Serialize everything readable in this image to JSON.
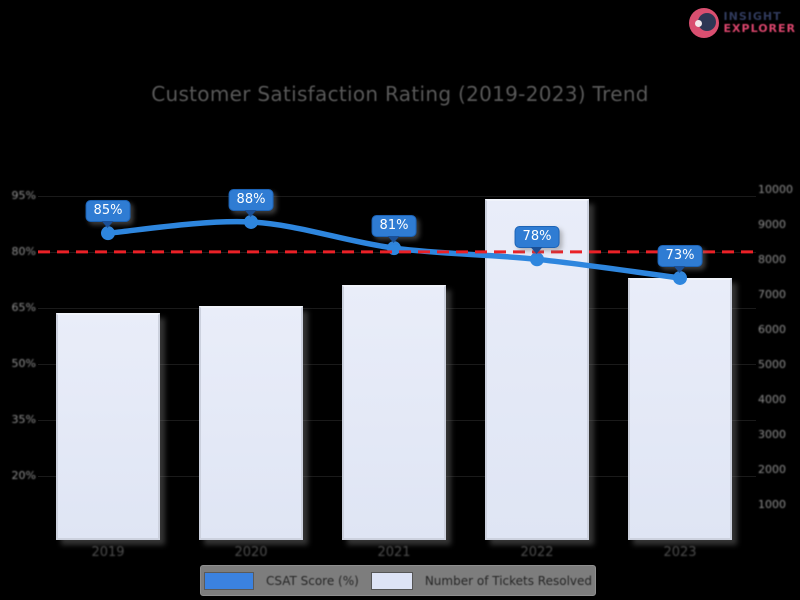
{
  "logo": {
    "icon": "aperture-circle-icon",
    "line1": "INSIGHT",
    "line2": "EXPLORER"
  },
  "title": "Customer Satisfaction Rating (2019-2023) Trend",
  "chart_data": {
    "type": "combo-bar-line",
    "categories": [
      "2019",
      "2020",
      "2021",
      "2022",
      "2023"
    ],
    "series": [
      {
        "name": "CSAT Score (%)",
        "type": "line",
        "axis": "left",
        "color": "#2e86de",
        "values": [
          85,
          88,
          81,
          78,
          73
        ],
        "data_labels": [
          "85%",
          "88%",
          "81%",
          "78%",
          "73%"
        ]
      },
      {
        "name": "Number of Tickets Resolved",
        "type": "bar",
        "axis": "right",
        "color": "#e2e8f7",
        "values": [
          6500,
          6700,
          7300,
          9750,
          7500
        ]
      }
    ],
    "target_line": {
      "value": 80,
      "color": "#ea2127",
      "style": "dashed"
    },
    "left_axis": {
      "tick_values": [
        95,
        80,
        65,
        50,
        35,
        20
      ],
      "tick_labels": [
        "95%",
        "80%",
        "65%",
        "50%",
        "35%",
        "20%"
      ]
    },
    "right_axis": {
      "tick_values": [
        10000,
        9000,
        8000,
        7000,
        6000,
        5000,
        4000,
        3000,
        2000,
        1000
      ],
      "tick_labels": [
        "10000",
        "9000",
        "8000",
        "7000",
        "6000",
        "5000",
        "4000",
        "3000",
        "2000",
        "1000"
      ]
    },
    "legend": [
      {
        "label": "CSAT Score (%)",
        "swatch": "#3b82e0"
      },
      {
        "label": "Number of Tickets Resolved",
        "swatch": "#dde3f5"
      }
    ],
    "grid": "off",
    "legend_position": "bottom-center"
  },
  "colors": {
    "background": "#000000",
    "title_text": "#585858",
    "axis_text": "#8f8f8f",
    "xaxis_text": "#4e4e4e",
    "bar_fill": "#e2e8f7",
    "bar_border": "#ccd1de",
    "line": "#2e86de",
    "pill_bg": "#2f7cd3",
    "pill_border": "#1c63b6",
    "target": "#ea2127",
    "legend_bg": "#7d7d7d",
    "logo_primary": "#303a5c",
    "logo_accent": "#d8446b"
  }
}
